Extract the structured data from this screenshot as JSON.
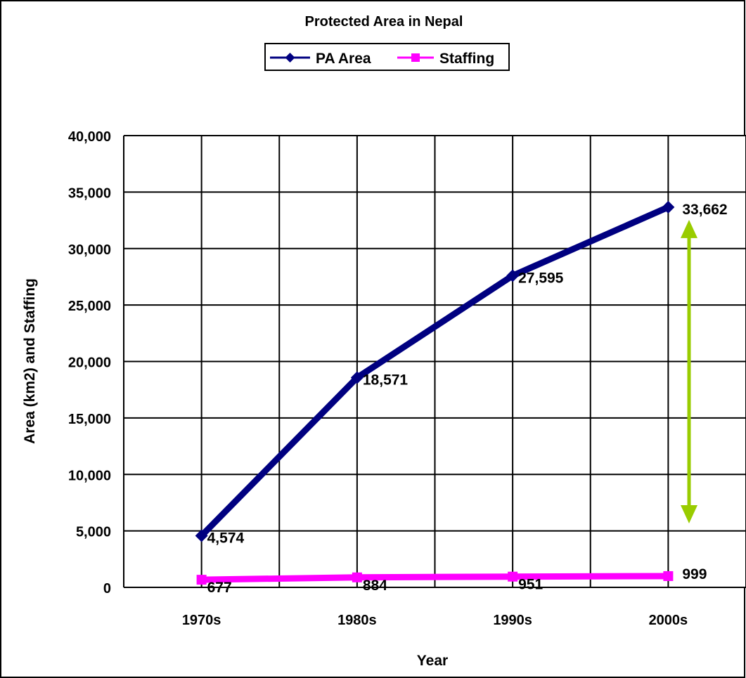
{
  "chart_data": {
    "type": "line",
    "title": "Protected Area in Nepal",
    "xlabel": "Year",
    "ylabel": "Area (km2) and Staffing",
    "categories": [
      "1970s",
      "1980s",
      "1990s",
      "2000s"
    ],
    "ylim": [
      0,
      40000
    ],
    "yticks": [
      0,
      5000,
      10000,
      15000,
      20000,
      25000,
      30000,
      35000,
      40000
    ],
    "ytick_labels": [
      "0",
      "5,000",
      "10,000",
      "15,000",
      "20,000",
      "25,000",
      "30,000",
      "35,000",
      "40,000"
    ],
    "grid": true,
    "legend_position": "top-center",
    "series": [
      {
        "name": "PA Area",
        "values": [
          4574,
          18571,
          27595,
          33662
        ],
        "labels": [
          "4,574",
          "18,571",
          "27,595",
          "33,662"
        ],
        "color": "#000080",
        "marker": "diamond"
      },
      {
        "name": "Staffing",
        "values": [
          677,
          884,
          951,
          999
        ],
        "labels": [
          "677",
          "884",
          "951",
          "999"
        ],
        "color": "#ff00ff",
        "marker": "square"
      }
    ],
    "annotations": [
      {
        "type": "double-arrow",
        "x": "2000s",
        "y_from": 999,
        "y_to": 33662,
        "color": "#99cc00"
      }
    ]
  }
}
